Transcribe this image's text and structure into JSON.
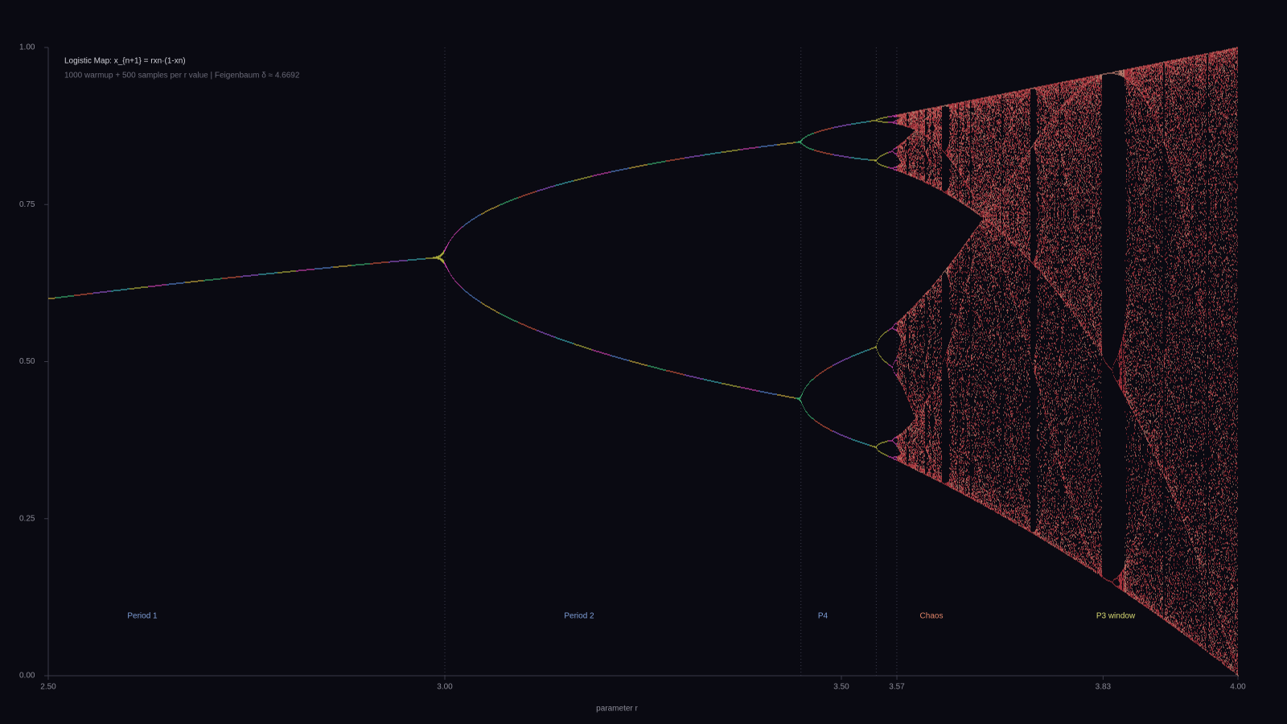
{
  "chart_data": {
    "type": "bifurcation",
    "title": "Logistic Map: x_{n+1} = rxn·(1-xn)",
    "subtitle": "1000 warmup + 500 samples per r value | Feigenbaum δ ≈ 4.6692",
    "x_label": "parameter r",
    "xlim": [
      2.5,
      4.0
    ],
    "xticks": [
      {
        "value": 2.5,
        "label": "2.50"
      },
      {
        "value": 3.0,
        "label": "3.00"
      },
      {
        "value": 3.5,
        "label": "3.50"
      },
      {
        "value": 3.57,
        "label": "3.57"
      },
      {
        "value": 3.83,
        "label": "3.83"
      },
      {
        "value": 4.0,
        "label": "4.00"
      }
    ],
    "ylim": [
      0,
      1
    ],
    "yticks": [
      {
        "value": 0,
        "label": "0.00"
      },
      {
        "value": 0.25,
        "label": "0.25"
      },
      {
        "value": 0.5,
        "label": "0.50"
      },
      {
        "value": 0.75,
        "label": "0.75"
      },
      {
        "value": 1,
        "label": "1.00"
      }
    ],
    "markers": [
      3.0,
      3.449,
      3.544,
      3.5699
    ],
    "regions": [
      {
        "label": "Period 1",
        "color": "#7f9fd8"
      },
      {
        "label": "Period 2",
        "color": "#7f9fd8"
      },
      {
        "label": "P4",
        "color": "#7f9fd8"
      },
      {
        "label": "Chaos",
        "color": "#e08468"
      },
      {
        "label": "P3 window",
        "color": "#d6d872"
      }
    ],
    "color": "#d8404a"
  }
}
